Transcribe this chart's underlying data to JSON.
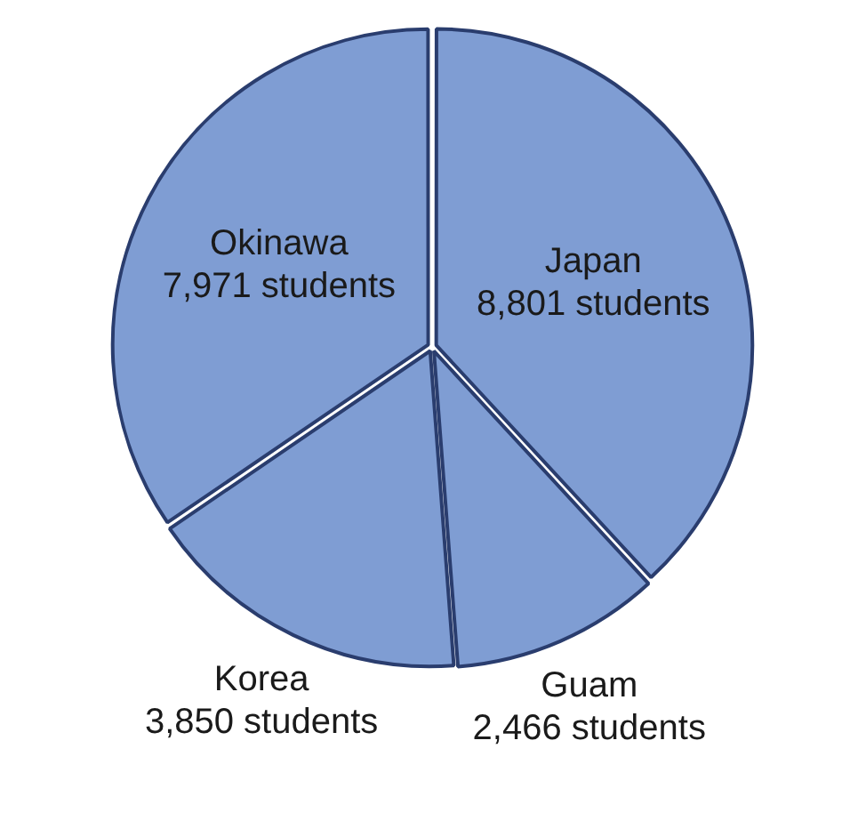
{
  "chart_data": {
    "type": "pie",
    "categories": [
      "Japan",
      "Guam",
      "Korea",
      "Okinawa"
    ],
    "values": [
      8801,
      2466,
      3850,
      7971
    ],
    "value_labels": [
      "8,801 students",
      "2,466 students",
      "3,850 students",
      "7,971 students"
    ],
    "colors": [
      "#7f9dd3",
      "#7f9dd3",
      "#7f9dd3",
      "#7f9dd3"
    ],
    "legend": false
  }
}
